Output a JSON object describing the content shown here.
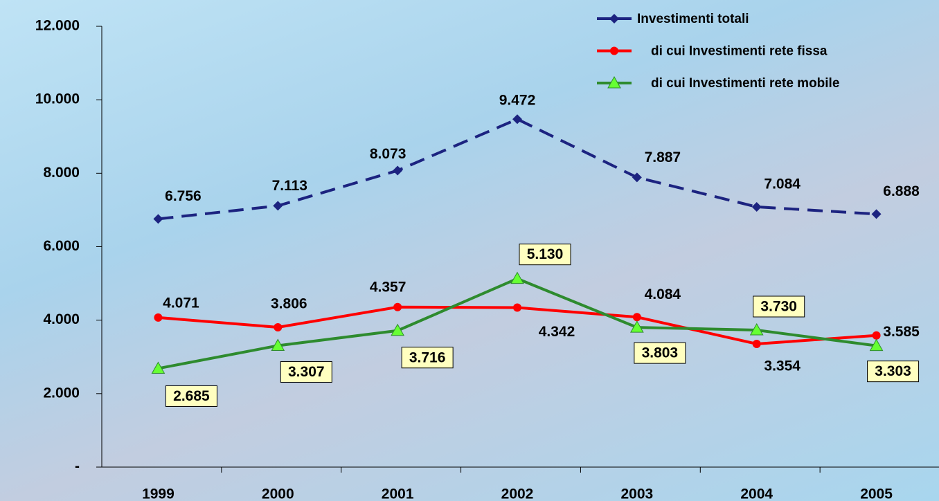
{
  "chart_data": {
    "type": "line",
    "categories": [
      "1999",
      "2000",
      "2001",
      "2002",
      "2003",
      "2004",
      "2005"
    ],
    "series": [
      {
        "name": "Investimenti totali",
        "color": "#1c2380",
        "dash": true,
        "marker": "diamond",
        "values": [
          6756,
          7113,
          8073,
          9472,
          7887,
          7084,
          6888
        ],
        "value_labels": [
          "6.756",
          "7.113",
          "8.073",
          "9.472",
          "7.887",
          "7.084",
          "6.888"
        ]
      },
      {
        "name": "di cui Investimenti rete fissa",
        "color": "#ff0000",
        "dash": false,
        "marker": "circle",
        "values": [
          4071,
          3806,
          4357,
          4342,
          4084,
          3354,
          3585
        ],
        "value_labels": [
          "4.071",
          "3.806",
          "4.357",
          "4.342",
          "4.084",
          "3.354",
          "3.585"
        ]
      },
      {
        "name": "di cui Investimenti rete mobile",
        "color": "#2e8b2e",
        "marker_color": "#66ff33",
        "dash": false,
        "marker": "triangle",
        "values": [
          2685,
          3307,
          3716,
          5130,
          3803,
          3730,
          3303
        ],
        "value_labels": [
          "2.685",
          "3.307",
          "3.716",
          "5.130",
          "3.803",
          "3.730",
          "3.303"
        ]
      }
    ],
    "ylim": [
      0,
      12000
    ],
    "yticks": [
      {
        "value": 0,
        "label": "-"
      },
      {
        "value": 2000,
        "label": "2.000"
      },
      {
        "value": 4000,
        "label": "4.000"
      },
      {
        "value": 6000,
        "label": "6.000"
      },
      {
        "value": 8000,
        "label": "8.000"
      },
      {
        "value": 10000,
        "label": "10.000"
      },
      {
        "value": 12000,
        "label": "12.000"
      }
    ],
    "legend": "top-right"
  }
}
